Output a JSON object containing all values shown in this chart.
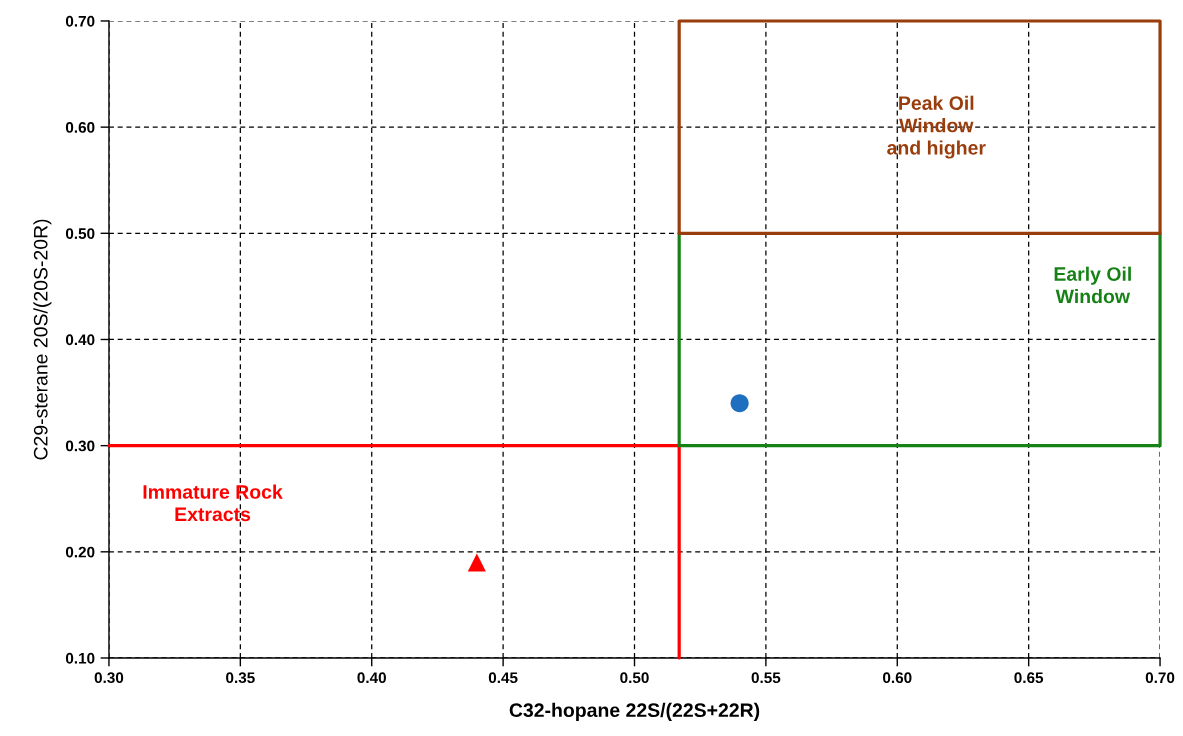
{
  "chart_data": {
    "type": "scatter",
    "xlabel": "C32-hopane 22S/(22S+22R)",
    "ylabel": "C29-sterane 20S/(20S-20R)",
    "xlim": [
      0.3,
      0.7
    ],
    "ylim": [
      0.1,
      0.7
    ],
    "xticks": [
      {
        "value": 0.3,
        "label": "0.30"
      },
      {
        "value": 0.35,
        "label": "0.35"
      },
      {
        "value": 0.4,
        "label": "0.40"
      },
      {
        "value": 0.45,
        "label": "0.45"
      },
      {
        "value": 0.5,
        "label": "0.50"
      },
      {
        "value": 0.55,
        "label": "0.55"
      },
      {
        "value": 0.6,
        "label": "0.60"
      },
      {
        "value": 0.65,
        "label": "0.65"
      },
      {
        "value": 0.7,
        "label": "0.70"
      }
    ],
    "yticks": [
      {
        "value": 0.1,
        "label": "0.10"
      },
      {
        "value": 0.2,
        "label": "0.20"
      },
      {
        "value": 0.3,
        "label": "0.30"
      },
      {
        "value": 0.4,
        "label": "0.40"
      },
      {
        "value": 0.5,
        "label": "0.50"
      },
      {
        "value": 0.6,
        "label": "0.60"
      },
      {
        "value": 0.7,
        "label": "0.70"
      }
    ],
    "grid": true,
    "series": [
      {
        "type": "line",
        "name": "Immature Rock\nExtracts",
        "color": "#ff0000",
        "x": [
          0.3,
          0.517,
          0.517
        ],
        "values": [
          0.3,
          0.3,
          0.1
        ]
      },
      {
        "type": "line",
        "name": "Early Oil\nWindow",
        "color": "#168216",
        "x": [
          0.517,
          0.517,
          0.7,
          0.7
        ],
        "values": [
          0.5,
          0.3,
          0.3,
          0.5
        ]
      },
      {
        "type": "line",
        "name": "Peak Oil\nWindow\nand higher",
        "color": "#993d0c",
        "x": [
          0.517,
          0.7,
          0.7,
          0.517,
          0.517,
          0.7
        ],
        "values": [
          0.7,
          0.7,
          0.5,
          0.5,
          0.7,
          0.7
        ]
      },
      {
        "color": "#1f6fc0",
        "marker": "circle",
        "x": [
          0.54
        ],
        "values": [
          0.34
        ]
      },
      {
        "color": "#ff0000",
        "marker": "triangle",
        "x": [
          0.44
        ],
        "values": [
          0.19
        ]
      }
    ]
  }
}
